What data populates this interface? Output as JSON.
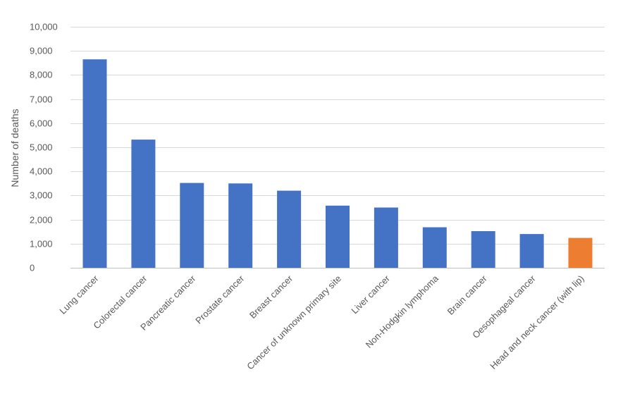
{
  "chart_data": {
    "type": "bar",
    "categories": [
      "Lung cancer",
      "Colorectal cancer",
      "Pancreatic cancer",
      "Prostate cancer",
      "Breast cancer",
      "Cancer of unknown primary site",
      "Liver cancer",
      "Non-Hodgkin lymphoma",
      "Brain cancer",
      "Oesophageal cancer",
      "Head and neck cancer (with lip)"
    ],
    "values": [
      8650,
      5320,
      3520,
      3500,
      3200,
      2580,
      2500,
      1680,
      1520,
      1400,
      1240
    ],
    "bar_colors": [
      "#4472c4",
      "#4472c4",
      "#4472c4",
      "#4472c4",
      "#4472c4",
      "#4472c4",
      "#4472c4",
      "#4472c4",
      "#4472c4",
      "#4472c4",
      "#ed7d31"
    ],
    "ylabel": "Number of deaths",
    "xlabel": "",
    "ylim": [
      0,
      10000
    ],
    "y_ticks": [
      0,
      1000,
      2000,
      3000,
      4000,
      5000,
      6000,
      7000,
      8000,
      9000,
      10000
    ],
    "y_tick_labels": [
      "0",
      "1,000",
      "2,000",
      "3,000",
      "4,000",
      "5,000",
      "6,000",
      "7,000",
      "8,000",
      "9,000",
      "10,000"
    ],
    "grid": true,
    "legend": "none"
  }
}
